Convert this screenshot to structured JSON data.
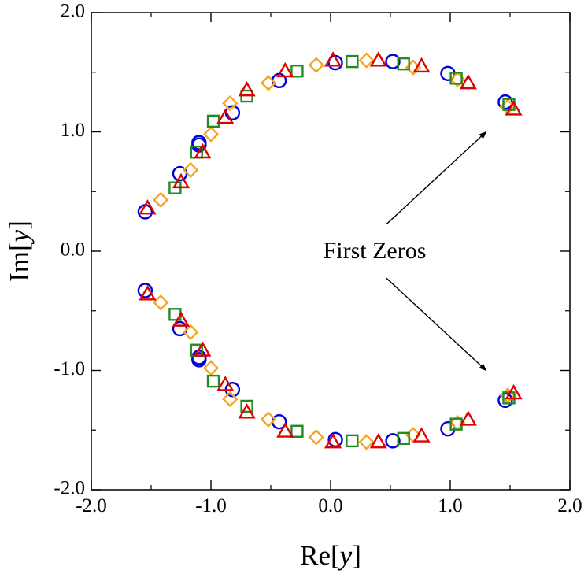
{
  "chart_data": {
    "type": "scatter",
    "title": "",
    "xlabel": {
      "prefix": "Re[",
      "var": "y",
      "suffix": "]"
    },
    "ylabel": {
      "prefix": "Im[",
      "var": "y",
      "suffix": "]"
    },
    "xlim": [
      -2.0,
      2.0
    ],
    "ylim": [
      -2.0,
      2.0
    ],
    "xticks": [
      -2.0,
      -1.0,
      0.0,
      1.0,
      2.0
    ],
    "yticks": [
      -2.0,
      -1.0,
      0.0,
      1.0,
      2.0
    ],
    "xtick_labels": [
      "-2.0",
      "-1.0",
      "0.0",
      "1.0",
      "2.0"
    ],
    "ytick_labels": [
      "-2.0",
      "-1.0",
      "0.0",
      "1.0",
      "2.0"
    ],
    "grid": false,
    "legend": "none",
    "annotation": {
      "text": "First Zeros",
      "text_pos": [
        0.0,
        0.0
      ],
      "arrows": [
        {
          "from": [
            0.5,
            0.2
          ],
          "to": [
            1.3,
            1.0
          ]
        },
        {
          "from": [
            0.5,
            -0.2
          ],
          "to": [
            1.3,
            -1.0
          ]
        }
      ]
    },
    "series": [
      {
        "name": "circles",
        "marker": "circle",
        "color": "#0000dd",
        "x": [
          -1.55,
          -1.26,
          -1.1,
          -1.1,
          -0.82,
          -0.43,
          0.04,
          0.52,
          0.98,
          1.46,
          -1.55,
          -1.26,
          -1.1,
          -1.1,
          -0.82,
          -0.43,
          0.04,
          0.52,
          0.98,
          1.46
        ],
        "y": [
          0.33,
          0.65,
          0.89,
          0.91,
          1.16,
          1.43,
          1.58,
          1.59,
          1.49,
          1.25,
          -0.33,
          -0.65,
          -0.89,
          -0.91,
          -1.16,
          -1.43,
          -1.58,
          -1.59,
          -1.49,
          -1.25
        ]
      },
      {
        "name": "diamonds",
        "marker": "diamond",
        "color": "#f5a623",
        "x": [
          -1.42,
          -1.17,
          -1.0,
          -0.84,
          -0.52,
          -0.12,
          0.3,
          0.69,
          1.06,
          1.48,
          -1.42,
          -1.17,
          -1.0,
          -0.84,
          -0.52,
          -0.12,
          0.3,
          0.69,
          1.06,
          1.48
        ],
        "y": [
          0.43,
          0.68,
          0.98,
          1.24,
          1.41,
          1.56,
          1.6,
          1.54,
          1.44,
          1.21,
          -0.43,
          -0.68,
          -0.98,
          -1.24,
          -1.41,
          -1.56,
          -1.6,
          -1.54,
          -1.44,
          -1.21
        ]
      },
      {
        "name": "squares",
        "marker": "square",
        "color": "#228b22",
        "x": [
          -1.3,
          -1.12,
          -0.98,
          -0.7,
          -0.28,
          0.18,
          0.61,
          1.05,
          1.49,
          -1.3,
          -1.12,
          -0.98,
          -0.7,
          -0.28,
          0.18,
          0.61,
          1.05,
          1.49
        ],
        "y": [
          0.53,
          0.83,
          1.09,
          1.3,
          1.51,
          1.59,
          1.57,
          1.45,
          1.23,
          -0.53,
          -0.83,
          -1.09,
          -1.3,
          -1.51,
          -1.59,
          -1.57,
          -1.45,
          -1.23
        ]
      },
      {
        "name": "triangles",
        "marker": "triangle",
        "color": "#e00000",
        "x": [
          -1.53,
          -1.25,
          -1.07,
          -0.88,
          -0.7,
          -0.38,
          0.02,
          0.4,
          0.76,
          1.15,
          1.53,
          -1.53,
          -1.25,
          -1.07,
          -0.88,
          -0.7,
          -0.38,
          0.02,
          0.4,
          0.76,
          1.15,
          1.53
        ],
        "y": [
          0.36,
          0.58,
          0.83,
          1.12,
          1.35,
          1.51,
          1.6,
          1.6,
          1.55,
          1.41,
          1.19,
          -0.36,
          -0.58,
          -0.83,
          -1.12,
          -1.35,
          -1.51,
          -1.6,
          -1.6,
          -1.55,
          -1.41,
          -1.19
        ]
      }
    ]
  }
}
